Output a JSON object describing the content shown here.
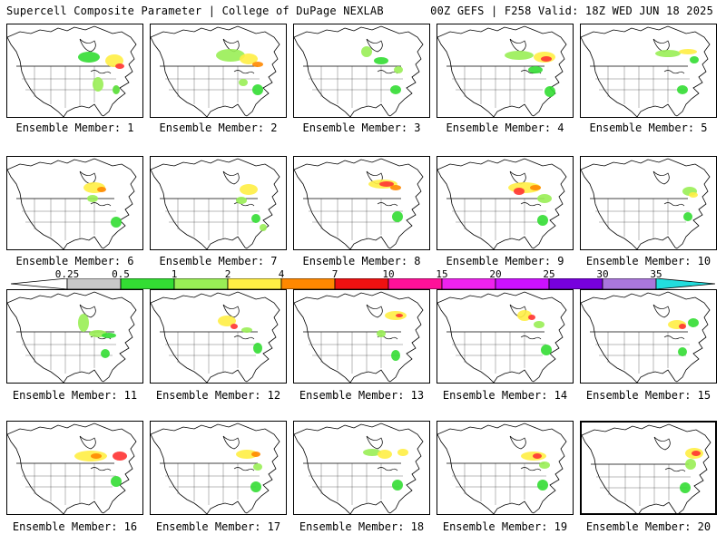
{
  "header": {
    "title_left": "Supercell Composite Parameter | College of DuPage NEXLAB",
    "title_right": "00Z GEFS | F258 Valid: 18Z WED JUN 18 2025"
  },
  "panels": [
    {
      "label": "Ensemble Member: 1",
      "blobs": [
        [
          90,
          82,
          12,
          6,
          "#33dd33"
        ],
        [
          118,
          86,
          10,
          7,
          "#ffee44"
        ],
        [
          124,
          92,
          5,
          3,
          "#ff3333"
        ],
        [
          100,
          112,
          6,
          8,
          "#99ee55"
        ],
        [
          120,
          118,
          4,
          5,
          "#55dd33"
        ]
      ]
    },
    {
      "label": "Ensemble Member: 2",
      "blobs": [
        [
          88,
          80,
          16,
          7,
          "#99ee55"
        ],
        [
          108,
          84,
          10,
          6,
          "#ffee44"
        ],
        [
          118,
          90,
          6,
          3,
          "#ff8800"
        ],
        [
          118,
          118,
          6,
          6,
          "#33dd33"
        ],
        [
          102,
          110,
          5,
          4,
          "#99ee55"
        ]
      ]
    },
    {
      "label": "Ensemble Member: 3",
      "blobs": [
        [
          80,
          76,
          6,
          6,
          "#99ee55"
        ],
        [
          96,
          86,
          8,
          4,
          "#33dd33"
        ],
        [
          115,
          96,
          5,
          4,
          "#99ee55"
        ],
        [
          112,
          118,
          6,
          5,
          "#33dd33"
        ]
      ]
    },
    {
      "label": "Ensemble Member: 4",
      "blobs": [
        [
          90,
          80,
          16,
          5,
          "#99ee55"
        ],
        [
          118,
          82,
          12,
          6,
          "#ffee44"
        ],
        [
          120,
          84,
          6,
          3,
          "#ff3333"
        ],
        [
          108,
          96,
          8,
          4,
          "#33dd33"
        ],
        [
          124,
          120,
          6,
          6,
          "#33dd33"
        ]
      ]
    },
    {
      "label": "Ensemble Member: 5",
      "blobs": [
        [
          96,
          78,
          14,
          4,
          "#99ee55"
        ],
        [
          118,
          76,
          10,
          3,
          "#ffee44"
        ],
        [
          125,
          85,
          5,
          4,
          "#33dd33"
        ],
        [
          112,
          118,
          6,
          5,
          "#33dd33"
        ]
      ]
    },
    {
      "label": "Ensemble Member: 6",
      "blobs": [
        [
          96,
          80,
          12,
          6,
          "#ffee44"
        ],
        [
          104,
          82,
          5,
          3,
          "#ff8800"
        ],
        [
          94,
          92,
          6,
          4,
          "#99ee55"
        ],
        [
          120,
          118,
          6,
          6,
          "#33dd33"
        ]
      ]
    },
    {
      "label": "Ensemble Member: 7",
      "blobs": [
        [
          108,
          82,
          10,
          6,
          "#ffee44"
        ],
        [
          100,
          94,
          6,
          4,
          "#99ee55"
        ],
        [
          116,
          114,
          5,
          5,
          "#33dd33"
        ],
        [
          124,
          124,
          4,
          4,
          "#99ee55"
        ]
      ]
    },
    {
      "label": "Ensemble Member: 8",
      "blobs": [
        [
          98,
          76,
          16,
          5,
          "#ffee44"
        ],
        [
          102,
          76,
          8,
          3,
          "#ff3333"
        ],
        [
          112,
          80,
          6,
          3,
          "#ff8800"
        ],
        [
          114,
          112,
          6,
          6,
          "#33dd33"
        ]
      ]
    },
    {
      "label": "Ensemble Member: 9",
      "blobs": [
        [
          96,
          80,
          18,
          6,
          "#ffee44"
        ],
        [
          90,
          84,
          6,
          4,
          "#ff3333"
        ],
        [
          108,
          80,
          6,
          3,
          "#ff8800"
        ],
        [
          118,
          92,
          8,
          5,
          "#99ee55"
        ],
        [
          116,
          116,
          6,
          6,
          "#33dd33"
        ]
      ]
    },
    {
      "label": "Ensemble Member: 10",
      "blobs": [
        [
          120,
          84,
          8,
          5,
          "#99ee55"
        ],
        [
          124,
          88,
          5,
          3,
          "#ffee44"
        ],
        [
          118,
          112,
          5,
          5,
          "#33dd33"
        ]
      ]
    },
    {
      "label": "Ensemble Member: 11",
      "blobs": [
        [
          84,
          82,
          6,
          10,
          "#99ee55"
        ],
        [
          100,
          94,
          10,
          4,
          "#99ee55"
        ],
        [
          112,
          96,
          8,
          3,
          "#33dd33"
        ],
        [
          108,
          116,
          5,
          5,
          "#33dd33"
        ]
      ]
    },
    {
      "label": "Ensemble Member: 12",
      "blobs": [
        [
          84,
          80,
          10,
          6,
          "#ffee44"
        ],
        [
          92,
          86,
          4,
          3,
          "#ff3333"
        ],
        [
          106,
          90,
          6,
          3,
          "#99ee55"
        ],
        [
          118,
          110,
          5,
          6,
          "#33dd33"
        ]
      ]
    },
    {
      "label": "Ensemble Member: 13",
      "blobs": [
        [
          112,
          74,
          12,
          5,
          "#ffee44"
        ],
        [
          116,
          74,
          4,
          2,
          "#ff3333"
        ],
        [
          96,
          94,
          5,
          4,
          "#99ee55"
        ],
        [
          112,
          118,
          5,
          6,
          "#33dd33"
        ]
      ]
    },
    {
      "label": "Ensemble Member: 14",
      "blobs": [
        [
          96,
          74,
          8,
          6,
          "#ffee44"
        ],
        [
          104,
          76,
          4,
          3,
          "#ff3333"
        ],
        [
          112,
          84,
          6,
          4,
          "#99ee55"
        ],
        [
          120,
          112,
          6,
          6,
          "#33dd33"
        ]
      ]
    },
    {
      "label": "Ensemble Member: 15",
      "blobs": [
        [
          106,
          84,
          10,
          5,
          "#ffee44"
        ],
        [
          112,
          86,
          4,
          3,
          "#ff3333"
        ],
        [
          124,
          82,
          6,
          5,
          "#33dd33"
        ],
        [
          112,
          114,
          5,
          5,
          "#33dd33"
        ]
      ]
    },
    {
      "label": "Ensemble Member: 16",
      "blobs": [
        [
          92,
          84,
          18,
          6,
          "#ffee44"
        ],
        [
          98,
          84,
          6,
          3,
          "#ff8800"
        ],
        [
          124,
          84,
          8,
          5,
          "#ff3333"
        ],
        [
          120,
          112,
          6,
          6,
          "#33dd33"
        ]
      ]
    },
    {
      "label": "Ensemble Member: 17",
      "blobs": [
        [
          106,
          82,
          12,
          5,
          "#ffee44"
        ],
        [
          116,
          82,
          5,
          3,
          "#ff8800"
        ],
        [
          118,
          96,
          5,
          4,
          "#99ee55"
        ],
        [
          116,
          118,
          6,
          6,
          "#33dd33"
        ]
      ]
    },
    {
      "label": "Ensemble Member: 18",
      "blobs": [
        [
          86,
          80,
          10,
          4,
          "#99ee55"
        ],
        [
          100,
          82,
          8,
          5,
          "#ffee44"
        ],
        [
          120,
          80,
          6,
          4,
          "#ffee44"
        ],
        [
          114,
          116,
          6,
          6,
          "#33dd33"
        ]
      ]
    },
    {
      "label": "Ensemble Member: 19",
      "blobs": [
        [
          106,
          84,
          14,
          5,
          "#ffee44"
        ],
        [
          110,
          84,
          5,
          3,
          "#ff3333"
        ],
        [
          118,
          94,
          6,
          4,
          "#99ee55"
        ],
        [
          116,
          116,
          6,
          6,
          "#33dd33"
        ]
      ]
    },
    {
      "label": "Ensemble Member: 20",
      "blobs": [
        [
          124,
          80,
          10,
          6,
          "#ffee44"
        ],
        [
          126,
          80,
          5,
          3,
          "#ff3333"
        ],
        [
          120,
          92,
          6,
          6,
          "#99ee55"
        ],
        [
          114,
          118,
          6,
          6,
          "#33dd33"
        ]
      ]
    }
  ],
  "colorbar": {
    "ticks": [
      "0.25",
      "0.5",
      "1",
      "2",
      "4",
      "7",
      "10",
      "15",
      "20",
      "25",
      "30",
      "35"
    ],
    "colors": [
      "#ffffff",
      "#c8c8c8",
      "#33dd33",
      "#99ee55",
      "#ffee44",
      "#ff8800",
      "#ee1111",
      "#ff1199",
      "#ee22ee",
      "#cc11ff",
      "#7700dd",
      "#aa77dd",
      "#22dddd"
    ]
  }
}
